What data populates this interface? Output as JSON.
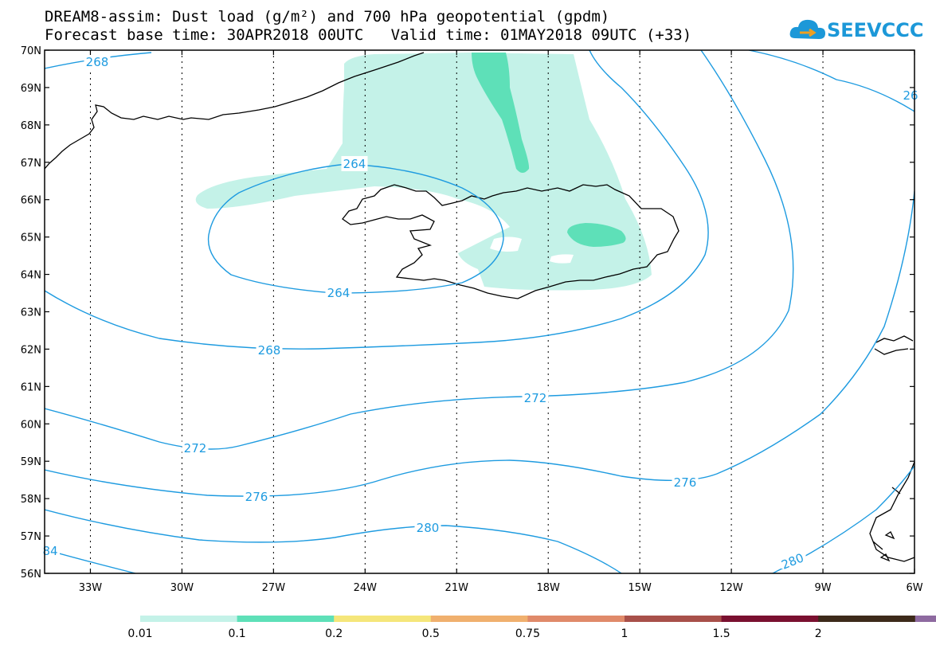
{
  "title": {
    "line1": "DREAM8-assim: Dust load (g/m²) and 700 hPa geopotential (gpdm)",
    "line2": "Forecast base time: 30APR2018 00UTC   Valid time: 01MAY2018 09UTC (+33)"
  },
  "logo": {
    "text": "SEEVCCC",
    "color": "#1c98d8"
  },
  "map": {
    "lat_range": [
      56,
      70
    ],
    "lon_range": [
      -34.5,
      -6
    ],
    "lat_labels": [
      "70N",
      "69N",
      "68N",
      "67N",
      "66N",
      "65N",
      "64N",
      "63N",
      "62N",
      "61N",
      "60N",
      "59N",
      "58N",
      "57N",
      "56N"
    ],
    "lon_labels": [
      "33W",
      "30W",
      "27W",
      "24W",
      "21W",
      "18W",
      "15W",
      "12W",
      "9W",
      "6W"
    ],
    "contour_color": "#1e9be0",
    "contour_labels": [
      "268",
      "264",
      "264",
      "268",
      "272",
      "272",
      "276",
      "276",
      "280",
      "280",
      "84",
      "26"
    ]
  },
  "colorbar": {
    "labels": [
      "0.01",
      "0.1",
      "0.2",
      "0.5",
      "0.75",
      "1",
      "1.5",
      "2"
    ],
    "colors": [
      "#c4f2e8",
      "#5ee0b8",
      "#f5e67a",
      "#f0b06e",
      "#e08a6a",
      "#a8504a",
      "#7a1030",
      "#3d2a1a",
      "#8e6aa0"
    ]
  }
}
